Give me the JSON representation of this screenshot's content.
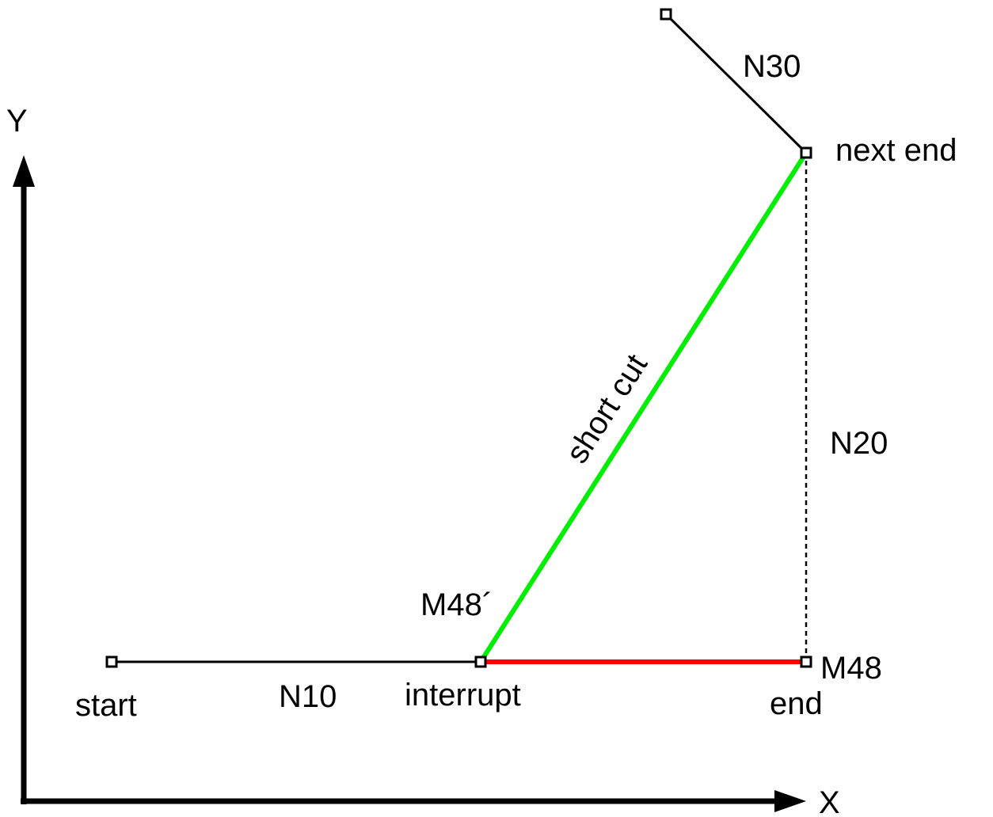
{
  "axes": {
    "x_label": "X",
    "y_label": "Y"
  },
  "segments": {
    "n10": "N10",
    "n20": "N20",
    "n30": "N30",
    "short_cut": "short cut"
  },
  "points": {
    "start": "start",
    "interrupt": "interrupt",
    "interrupt_marker": "M48´",
    "end": "end",
    "end_marker": "M48",
    "next_end": "next end"
  },
  "colors": {
    "short_cut_path": "#00ee00",
    "remaining_path": "#ff0000",
    "default_path": "#000000"
  }
}
